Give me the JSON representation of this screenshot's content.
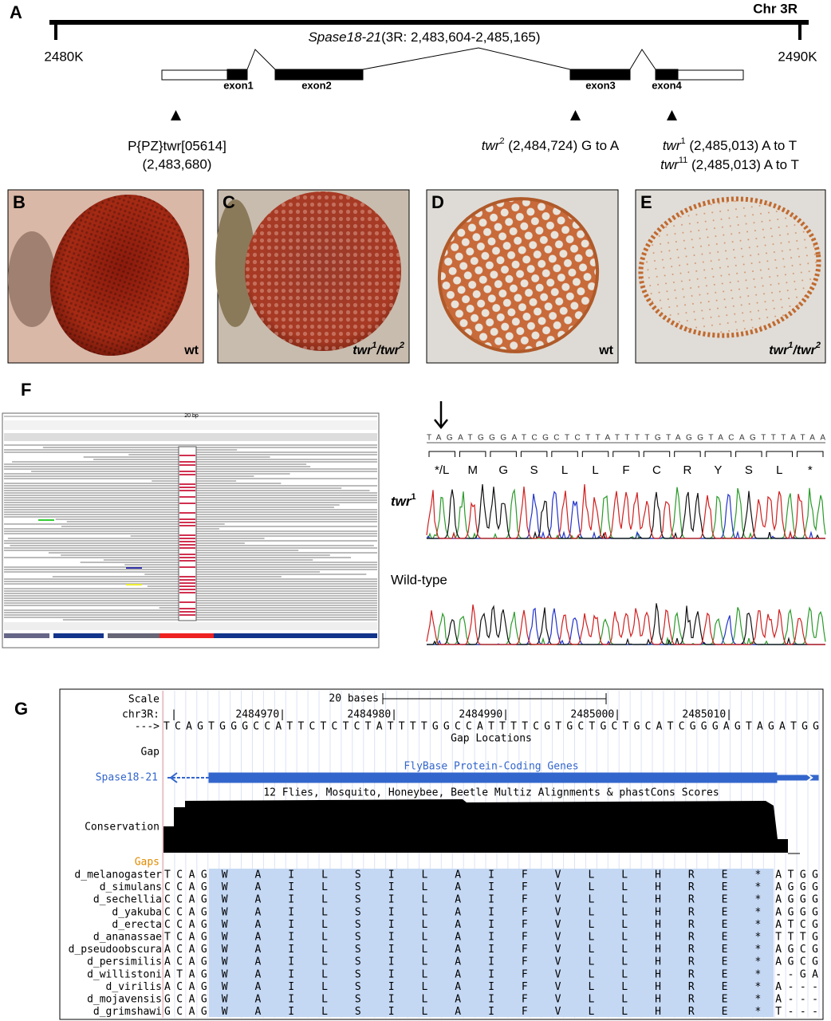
{
  "panel_a": {
    "label": "A",
    "chromosome": "Chr 3R",
    "left_tick": "2480K",
    "right_tick": "2490K",
    "gene_name": "Spase18-21",
    "gene_location": "(3R: 2,483,604-2,485,165)",
    "exons": [
      "exon1",
      "exon2",
      "exon3",
      "exon4"
    ],
    "insertion": {
      "name": "P{PZ}twr[05614]",
      "position": "(2,483,680)"
    },
    "alleles": [
      {
        "gene": "twr",
        "superscript": "2",
        "detail": " (2,484,724) G to A"
      },
      {
        "gene": "twr",
        "superscript": "1",
        "detail": " (2,485,013) A to T"
      },
      {
        "gene": "twr",
        "superscript": "11",
        "detail": " (2,485,013) A to T"
      }
    ]
  },
  "photos": [
    {
      "label": "B",
      "genotype": [
        "wt"
      ]
    },
    {
      "label": "C",
      "genotype": [
        "twr",
        "1",
        "/twr",
        "2"
      ]
    },
    {
      "label": "D",
      "genotype": [
        "wt"
      ]
    },
    {
      "label": "E",
      "genotype": [
        "twr",
        "1",
        "/twr",
        "2"
      ]
    }
  ],
  "panel_f": {
    "label": "F",
    "igv_scale": "20 bp",
    "sequence": "TAGATGGGATCGCTCTTATTTTGTAGGTACAGTTTATAA",
    "codons": [
      "*/L",
      "M",
      "G",
      "S",
      "L",
      "L",
      "F",
      "C",
      "R",
      "Y",
      "S",
      "L",
      "*"
    ],
    "mutant_label": [
      "twr",
      "1"
    ],
    "wildtype_label": "Wild-type"
  },
  "panel_g": {
    "label": "G",
    "scale_label": "Scale",
    "scale_text": "20 bases",
    "chrom": "chr3R:",
    "chrom_start_mark": "|",
    "coordinates": [
      "2484970|",
      "2484980|",
      "2484990|",
      "2485000|",
      "2485010|"
    ],
    "arrow": "--->",
    "sequence": "TCAGTGGGCCATTCTCTCTATTTTGGCCATTTTCGTGCTGCTGCATCGGGAGTAGATGG",
    "gap_track_title": "Gap Locations",
    "gap_label": "Gap",
    "gene_track_title": "FlyBase Protein-Coding Genes",
    "gene_label": "Spase18-21",
    "cons_track_title": "12 Flies, Mosquito, Honeybee, Beetle Multiz Alignments & phastCons Scores",
    "cons_label": "Conservation",
    "gaps_label": "Gaps",
    "species": [
      {
        "name": "d_melanogaster",
        "left": "TCAG",
        "aa": [
          "W",
          "A",
          "I",
          "L",
          "S",
          "I",
          "L",
          "A",
          "I",
          "F",
          "V",
          "L",
          "L",
          "H",
          "R",
          "E",
          "*"
        ],
        "right": "ATGG"
      },
      {
        "name": "d_simulans",
        "left": "CCAG",
        "aa": [
          "W",
          "A",
          "I",
          "L",
          "S",
          "I",
          "L",
          "A",
          "I",
          "F",
          "V",
          "L",
          "L",
          "H",
          "R",
          "E",
          "*"
        ],
        "right": "AGGG"
      },
      {
        "name": "d_sechellia",
        "left": "CCAG",
        "aa": [
          "W",
          "A",
          "I",
          "L",
          "S",
          "I",
          "L",
          "A",
          "I",
          "F",
          "V",
          "L",
          "L",
          "H",
          "R",
          "E",
          "*"
        ],
        "right": "AGGG"
      },
      {
        "name": "d_yakuba",
        "left": "CCAG",
        "aa": [
          "W",
          "A",
          "I",
          "L",
          "S",
          "I",
          "L",
          "A",
          "I",
          "F",
          "V",
          "L",
          "L",
          "H",
          "R",
          "E",
          "*"
        ],
        "right": "AGGG"
      },
      {
        "name": "d_erecta",
        "left": "CCAG",
        "aa": [
          "W",
          "A",
          "I",
          "L",
          "S",
          "I",
          "L",
          "A",
          "I",
          "F",
          "V",
          "L",
          "L",
          "H",
          "R",
          "E",
          "*"
        ],
        "right": "ATCG"
      },
      {
        "name": "d_ananassae",
        "left": "TCAG",
        "aa": [
          "W",
          "A",
          "I",
          "L",
          "S",
          "I",
          "L",
          "A",
          "I",
          "F",
          "V",
          "L",
          "L",
          "H",
          "R",
          "E",
          "*"
        ],
        "right": "TTTG"
      },
      {
        "name": "d_pseudoobscura",
        "left": "ACAG",
        "aa": [
          "W",
          "A",
          "I",
          "L",
          "S",
          "I",
          "L",
          "A",
          "I",
          "F",
          "V",
          "L",
          "L",
          "H",
          "R",
          "E",
          "*"
        ],
        "right": "AGCG"
      },
      {
        "name": "d_persimilis",
        "left": "ACAG",
        "aa": [
          "W",
          "A",
          "I",
          "L",
          "S",
          "I",
          "L",
          "A",
          "I",
          "F",
          "V",
          "L",
          "L",
          "H",
          "R",
          "E",
          "*"
        ],
        "right": "AGCG"
      },
      {
        "name": "d_willistoni",
        "left": "ATAG",
        "aa": [
          "W",
          "A",
          "I",
          "L",
          "S",
          "I",
          "L",
          "A",
          "I",
          "F",
          "V",
          "L",
          "L",
          "H",
          "R",
          "E",
          "*"
        ],
        "right": "--GA"
      },
      {
        "name": "d_virilis",
        "left": "ACAG",
        "aa": [
          "W",
          "A",
          "I",
          "L",
          "S",
          "I",
          "L",
          "A",
          "I",
          "F",
          "V",
          "L",
          "L",
          "H",
          "R",
          "E",
          "*"
        ],
        "right": "A---"
      },
      {
        "name": "d_mojavensis",
        "left": "GCAG",
        "aa": [
          "W",
          "A",
          "I",
          "L",
          "S",
          "I",
          "L",
          "A",
          "I",
          "F",
          "V",
          "L",
          "L",
          "H",
          "R",
          "E",
          "*"
        ],
        "right": "A---"
      },
      {
        "name": "d_grimshawi",
        "left": "GCAG",
        "aa": [
          "W",
          "A",
          "I",
          "L",
          "S",
          "I",
          "L",
          "A",
          "I",
          "F",
          "V",
          "L",
          "L",
          "H",
          "R",
          "E",
          "*"
        ],
        "right": "T---"
      }
    ]
  }
}
